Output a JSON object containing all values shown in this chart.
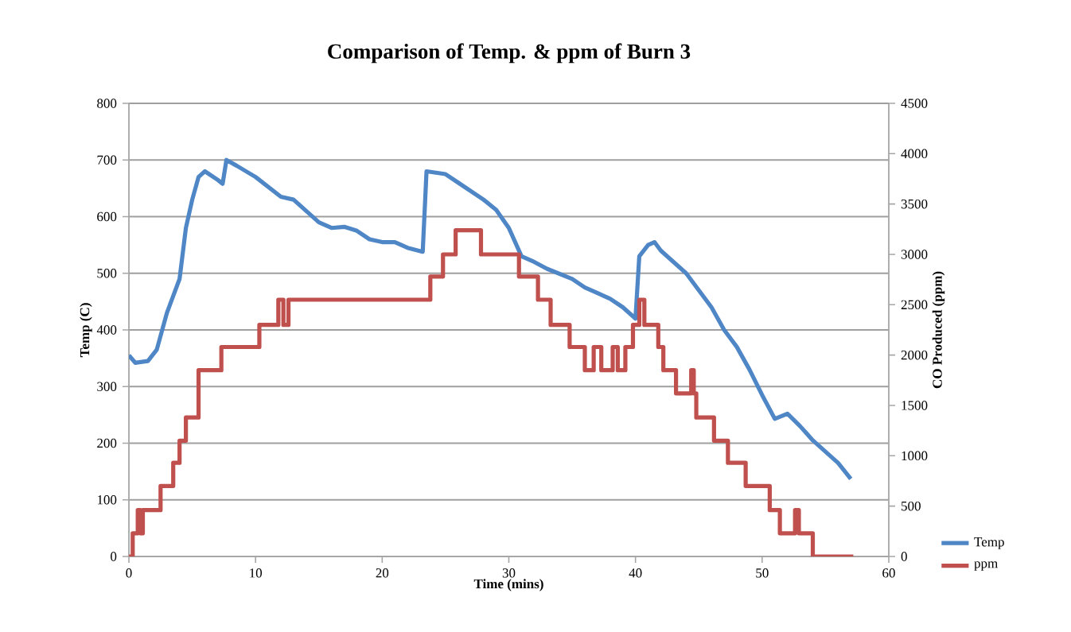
{
  "chart_data": {
    "type": "line",
    "title": "Comparison of Temp. & ppm of Burn 3",
    "xlabel": "Time (mins)",
    "ylabel": "Temp (C)",
    "y2label": "CO Produced (ppm)",
    "xlim": [
      0,
      60
    ],
    "xticks": [
      0,
      10,
      20,
      30,
      40,
      50,
      60
    ],
    "ylim": [
      0,
      800
    ],
    "yticks": [
      0,
      100,
      200,
      300,
      400,
      500,
      600,
      700,
      800
    ],
    "y2lim": [
      0,
      4500
    ],
    "y2ticks": [
      0,
      500,
      1000,
      1500,
      2000,
      2500,
      3000,
      3500,
      4000,
      4500
    ],
    "grid": "y",
    "legend": "bottom right",
    "marker": "none",
    "line_style": "solid",
    "series": [
      {
        "name": "Temp",
        "color": "#4f86c6",
        "x": [
          0,
          0.5,
          1.5,
          2.2,
          3,
          4,
          4.5,
          5,
          5.5,
          6,
          7,
          7.4,
          7.7,
          8.5,
          10,
          12,
          13,
          14,
          15,
          16,
          17,
          18,
          19,
          20,
          21,
          22,
          23.2,
          23.5,
          25,
          26,
          27,
          28,
          29,
          30,
          31,
          32,
          33,
          35,
          36,
          37,
          38,
          39,
          40,
          40.3,
          41,
          41.5,
          42,
          44,
          45,
          46,
          47,
          48,
          49,
          50,
          51,
          52,
          53,
          54,
          55,
          56,
          57
        ],
        "values": [
          355,
          342,
          345,
          365,
          430,
          490,
          580,
          630,
          670,
          680,
          665,
          658,
          700,
          690,
          670,
          635,
          630,
          610,
          590,
          580,
          582,
          575,
          560,
          555,
          555,
          545,
          538,
          680,
          675,
          660,
          645,
          630,
          612,
          580,
          530,
          520,
          508,
          490,
          475,
          465,
          455,
          440,
          420,
          530,
          550,
          555,
          540,
          500,
          470,
          440,
          400,
          370,
          330,
          285,
          243,
          252,
          230,
          205,
          185,
          165,
          137
        ]
      },
      {
        "name": "ppm",
        "color": "#c0504d",
        "type": "step",
        "axis": "y2",
        "x": [
          0,
          0.3,
          0.7,
          0.9,
          1.1,
          2.5,
          3.5,
          4.0,
          4.5,
          5.5,
          7.3,
          10.3,
          11.8,
          12.2,
          12.6,
          23.8,
          24.8,
          25.8,
          27.8,
          30.8,
          32.3,
          33.3,
          34.8,
          36.0,
          36.7,
          37.3,
          38.2,
          38.6,
          39.2,
          39.8,
          40.3,
          40.7,
          41.8,
          42.2,
          43.2,
          44.4,
          44.6,
          44.8,
          46.2,
          47.3,
          48.7,
          50.6,
          51.4,
          52.6,
          52.9,
          54.0,
          57.2
        ],
        "values": [
          0,
          230,
          460,
          230,
          460,
          700,
          930,
          1150,
          1380,
          1850,
          2080,
          2300,
          2550,
          2300,
          2550,
          2780,
          3000,
          3240,
          3000,
          2780,
          2550,
          2300,
          2080,
          1850,
          2080,
          1850,
          2080,
          1850,
          2080,
          2300,
          2550,
          2300,
          2080,
          1850,
          1620,
          1850,
          1620,
          1380,
          1150,
          930,
          700,
          460,
          230,
          460,
          230,
          0,
          0
        ]
      }
    ]
  }
}
